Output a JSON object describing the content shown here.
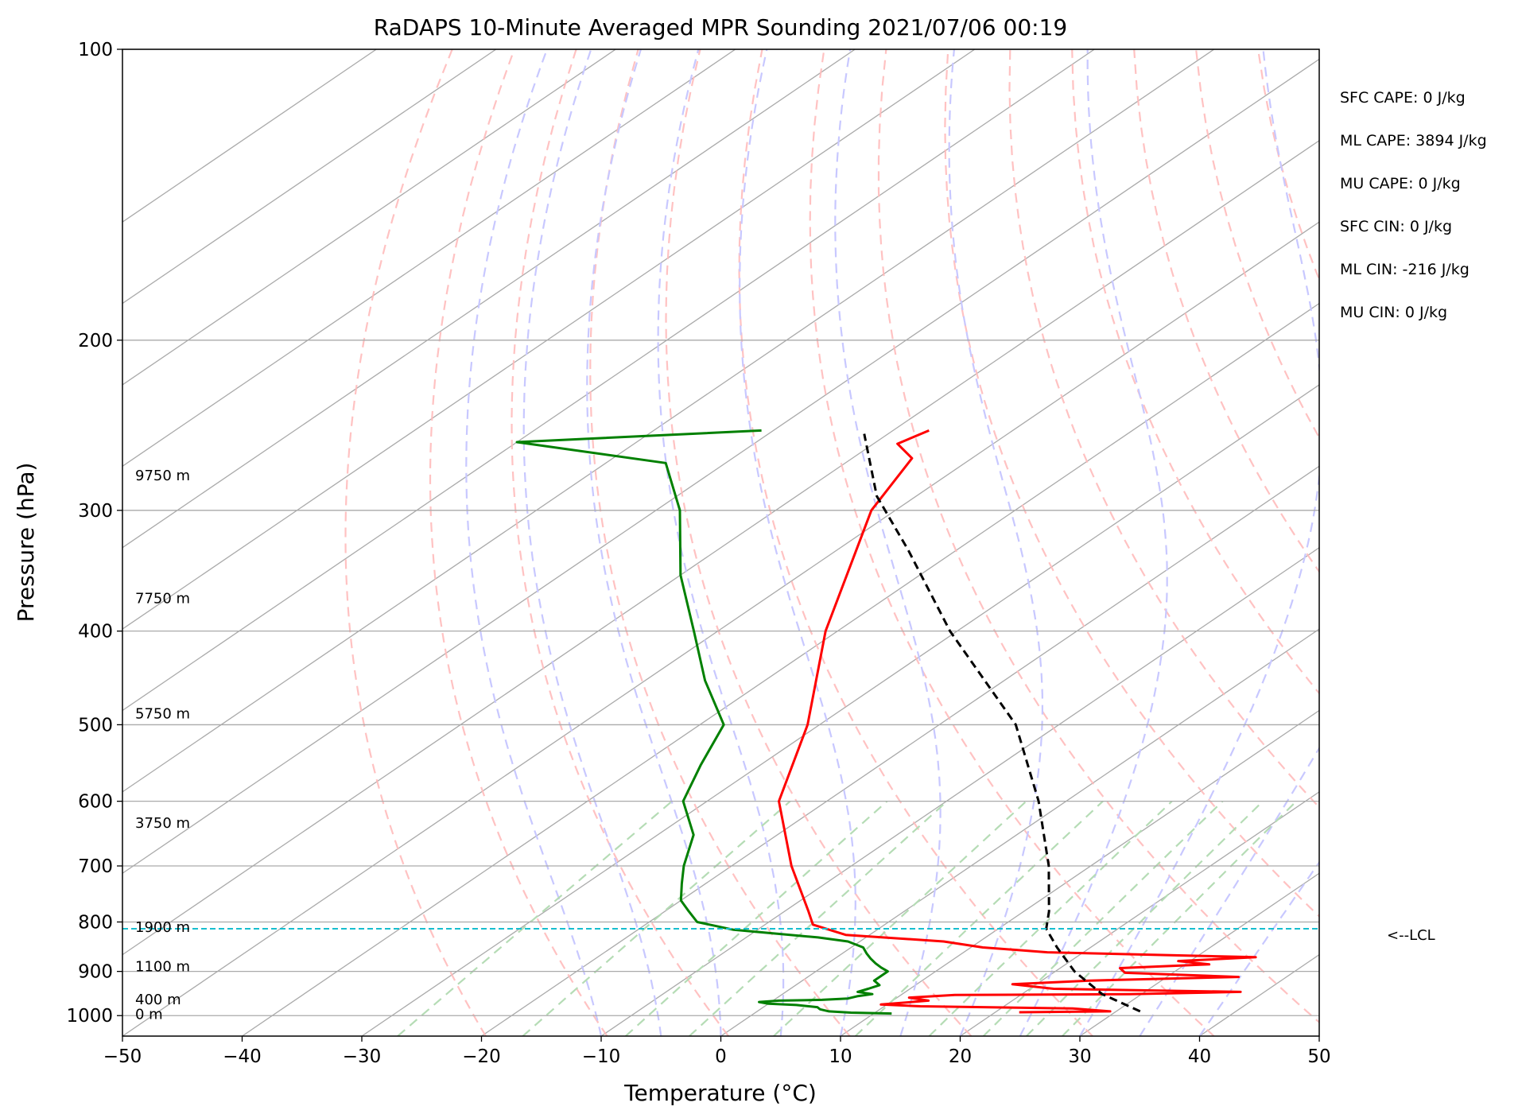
{
  "chart_data": {
    "type": "line",
    "title": "RaDAPS 10-Minute Averaged MPR Sounding 2021/07/06 00:19",
    "xlabel": "Temperature (°C)",
    "ylabel": "Pressure (hPa)",
    "xlim": [
      -50,
      50
    ],
    "ylim": [
      1050,
      100
    ],
    "y_scale": "log",
    "x_ticks": [
      "−50",
      "−40",
      "−30",
      "−20",
      "−10",
      "0",
      "10",
      "20",
      "30",
      "40",
      "50"
    ],
    "y_ticks": [
      "100",
      "200",
      "300",
      "400",
      "500",
      "600",
      "700",
      "800",
      "900",
      "1000"
    ],
    "y_tick_values": [
      100,
      200,
      300,
      400,
      500,
      600,
      700,
      800,
      900,
      1000
    ],
    "grid": true,
    "height_labels": [
      {
        "p": 997,
        "label": "0 m"
      },
      {
        "p": 962,
        "label": "400 m"
      },
      {
        "p": 890,
        "label": "1100 m"
      },
      {
        "p": 810,
        "label": "1900 m"
      },
      {
        "p": 632,
        "label": "3750 m"
      },
      {
        "p": 487,
        "label": "5750 m"
      },
      {
        "p": 370,
        "label": "7750 m"
      },
      {
        "p": 276,
        "label": "9750 m"
      }
    ],
    "stats": [
      "SFC CAPE: 0 J/kg",
      "ML CAPE: 3894 J/kg",
      "MU CAPE: 0 J/kg",
      "SFC CIN: 0 J/kg",
      "ML CIN: -216 J/kg",
      "MU CIN: 0 J/kg"
    ],
    "lcl": {
      "p": 813,
      "label": "<--LCL",
      "color": "#17becf"
    },
    "temperature": {
      "color": "#ff0000",
      "points": [
        [
          992,
          22
        ],
        [
          990,
          29.5
        ],
        [
          983,
          26
        ],
        [
          978,
          13
        ],
        [
          974,
          9.5
        ],
        [
          965,
          13
        ],
        [
          958,
          11
        ],
        [
          952,
          14.5
        ],
        [
          950,
          29
        ],
        [
          945,
          38
        ],
        [
          938,
          22
        ],
        [
          928,
          18
        ],
        [
          920,
          24
        ],
        [
          912,
          36
        ],
        [
          903,
          26
        ],
        [
          893,
          25
        ],
        [
          885,
          32
        ],
        [
          878,
          29
        ],
        [
          870,
          35
        ],
        [
          860,
          17
        ],
        [
          850,
          11
        ],
        [
          838,
          7
        ],
        [
          825,
          -2
        ],
        [
          805,
          -6
        ],
        [
          780,
          -8
        ],
        [
          700,
          -15
        ],
        [
          600,
          -24
        ],
        [
          500,
          -31
        ],
        [
          400,
          -41
        ],
        [
          300,
          -52
        ],
        [
          265,
          -55
        ],
        [
          256,
          -58
        ],
        [
          248,
          -57
        ]
      ]
    },
    "dewpoint": {
      "color": "#008000",
      "points": [
        [
          995,
          11.5
        ],
        [
          993,
          8
        ],
        [
          990,
          6
        ],
        [
          985,
          5
        ],
        [
          980,
          4.5
        ],
        [
          975,
          2.5
        ],
        [
          972,
          0
        ],
        [
          968,
          -1
        ],
        [
          965,
          0.5
        ],
        [
          963,
          4
        ],
        [
          960,
          6
        ],
        [
          955,
          6.5
        ],
        [
          950,
          7.5
        ],
        [
          945,
          6
        ],
        [
          938,
          6.5
        ],
        [
          930,
          7
        ],
        [
          920,
          6
        ],
        [
          910,
          6
        ],
        [
          900,
          6
        ],
        [
          892,
          5
        ],
        [
          883,
          4
        ],
        [
          873,
          3
        ],
        [
          862,
          2
        ],
        [
          850,
          1
        ],
        [
          838,
          -1
        ],
        [
          830,
          -4
        ],
        [
          815,
          -12
        ],
        [
          800,
          -16
        ],
        [
          780,
          -18
        ],
        [
          760,
          -20
        ],
        [
          730,
          -22
        ],
        [
          700,
          -24
        ],
        [
          650,
          -27
        ],
        [
          600,
          -32
        ],
        [
          550,
          -35
        ],
        [
          500,
          -38
        ],
        [
          450,
          -45
        ],
        [
          400,
          -52
        ],
        [
          350,
          -60
        ],
        [
          300,
          -68
        ],
        [
          268,
          -75
        ],
        [
          255,
          -90
        ],
        [
          248,
          -71
        ]
      ]
    },
    "parcel": {
      "color": "#000000",
      "points": [
        [
          990,
          32
        ],
        [
          950,
          26.7
        ],
        [
          900,
          21.6
        ],
        [
          850,
          17.2
        ],
        [
          813,
          14
        ],
        [
          780,
          12.1
        ],
        [
          700,
          6.5
        ],
        [
          600,
          -2.3
        ],
        [
          500,
          -13.6
        ],
        [
          400,
          -30.6
        ],
        [
          330,
          -44
        ],
        [
          290,
          -53.3
        ],
        [
          250,
          -62
        ]
      ]
    },
    "reference_colors": {
      "isotherm": "#aaaaaa",
      "dry_adiabat": "#ffbbbb",
      "moist_adiabat": "#c8c8ff",
      "mixing_ratio": "#b5dcb5"
    }
  }
}
